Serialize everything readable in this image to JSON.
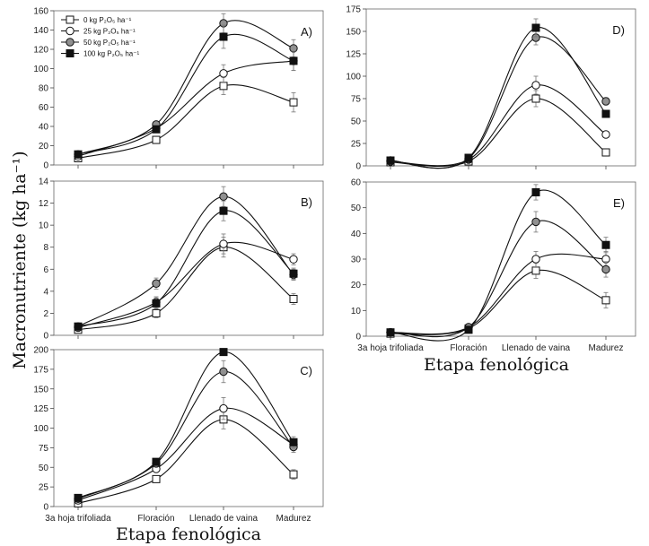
{
  "chart_data": {
    "type": "line",
    "ylabel": "Macronutriente (kg ha⁻¹)",
    "xlabel": "Etapa fenológica",
    "categories": [
      "3a hoja trifoliada",
      "Floración",
      "Llenado de vaina",
      "Madurez"
    ],
    "legend": {
      "placement": "top-left of panel A",
      "entries": [
        {
          "text": "0 kg P₂O₅ ha⁻¹",
          "marker": "open-square"
        },
        {
          "text": "25 kg P₂O₅ ha⁻¹",
          "marker": "open-circle"
        },
        {
          "text": "50 kg P₂O₅ ha⁻¹",
          "marker": "gray-circle"
        },
        {
          "text": "100 kg P₂O₅ ha⁻¹",
          "marker": "black-square"
        }
      ]
    },
    "colors": {
      "open_fill": "#ffffff",
      "gray_fill": "#909090",
      "black_fill": "#111111",
      "stroke": "#111111"
    },
    "panels": [
      {
        "label": "A)",
        "ylim": [
          0,
          160
        ],
        "yticks": [
          "0",
          "20",
          "40",
          "60",
          "80",
          "100",
          "120",
          "140",
          "160"
        ],
        "series": [
          {
            "name": "0 kg P2O5 ha-1",
            "values": [
              7,
              26,
              82,
              65
            ],
            "errors": [
              0,
              2,
              9,
              10
            ]
          },
          {
            "name": "25 kg P2O5 ha-1",
            "values": [
              9,
              38,
              95,
              108
            ],
            "errors": [
              0,
              3,
              9,
              10
            ]
          },
          {
            "name": "50 kg P2O5 ha-1",
            "values": [
              11,
              42,
              147,
              121
            ],
            "errors": [
              0,
              3,
              10,
              9
            ]
          },
          {
            "name": "100 kg P2O5 ha-1",
            "values": [
              11,
              37,
              133,
              108
            ],
            "errors": [
              0,
              3,
              12,
              10
            ]
          }
        ]
      },
      {
        "label": "B)",
        "ylim": [
          0,
          14
        ],
        "yticks": [
          "0",
          "2",
          "4",
          "6",
          "8",
          "10",
          "12",
          "14"
        ],
        "series": [
          {
            "name": "0 kg P2O5 ha-1",
            "values": [
              0.5,
              2.0,
              8.0,
              3.3
            ],
            "errors": [
              0,
              0.4,
              0.9,
              0.5
            ]
          },
          {
            "name": "25 kg P2O5 ha-1",
            "values": [
              0.7,
              3.0,
              8.3,
              6.9
            ],
            "errors": [
              0,
              0.5,
              0.9,
              0.5
            ]
          },
          {
            "name": "50 kg P2O5 ha-1",
            "values": [
              0.8,
              4.7,
              12.6,
              5.5
            ],
            "errors": [
              0,
              0.5,
              0.9,
              0.5
            ]
          },
          {
            "name": "100 kg P2O5 ha-1",
            "values": [
              0.8,
              2.9,
              11.3,
              5.6
            ],
            "errors": [
              0,
              0.5,
              0.9,
              0.5
            ]
          }
        ]
      },
      {
        "label": "C)",
        "ylim": [
          0,
          200
        ],
        "yticks": [
          "0",
          "25",
          "50",
          "75",
          "100",
          "125",
          "150",
          "175",
          "200"
        ],
        "series": [
          {
            "name": "0 kg P2O5 ha-1",
            "values": [
              4,
              35,
              111,
              41
            ],
            "errors": [
              0,
              4,
              12,
              6
            ]
          },
          {
            "name": "25 kg P2O5 ha-1",
            "values": [
              8,
              48,
              125,
              79
            ],
            "errors": [
              0,
              4,
              14,
              7
            ]
          },
          {
            "name": "50 kg P2O5 ha-1",
            "values": [
              10,
              55,
              172,
              76
            ],
            "errors": [
              0,
              4,
              14,
              7
            ]
          },
          {
            "name": "100 kg P2O5 ha-1",
            "values": [
              11,
              57,
              197,
              82
            ],
            "errors": [
              0,
              4,
              0,
              7
            ]
          }
        ]
      },
      {
        "label": "D)",
        "ylim": [
          0,
          175
        ],
        "yticks": [
          "0",
          "25",
          "50",
          "75",
          "100",
          "125",
          "150",
          "175"
        ],
        "series": [
          {
            "name": "0 kg P2O5 ha-1",
            "values": [
              4,
              5,
              75,
              15
            ],
            "errors": [
              0,
              0,
              9,
              3
            ]
          },
          {
            "name": "25 kg P2O5 ha-1",
            "values": [
              5,
              7,
              90,
              35
            ],
            "errors": [
              0,
              0,
              10,
              3
            ]
          },
          {
            "name": "50 kg P2O5 ha-1",
            "values": [
              6,
              8,
              143,
              72
            ],
            "errors": [
              0,
              0,
              8,
              4
            ]
          },
          {
            "name": "100 kg P2O5 ha-1",
            "values": [
              6,
              9,
              154,
              58
            ],
            "errors": [
              0,
              0,
              10,
              4
            ]
          }
        ]
      },
      {
        "label": "E)",
        "ylim": [
          0,
          60
        ],
        "yticks": [
          "0",
          "10",
          "20",
          "30",
          "40",
          "50",
          "60"
        ],
        "series": [
          {
            "name": "0 kg P2O5 ha-1",
            "values": [
              1.0,
              3.0,
              25.5,
              14
            ],
            "errors": [
              0,
              0,
              3,
              3
            ]
          },
          {
            "name": "25 kg P2O5 ha-1",
            "values": [
              1.5,
              3.5,
              30,
              30
            ],
            "errors": [
              0,
              0,
              3,
              3
            ]
          },
          {
            "name": "50 kg P2O5 ha-1",
            "values": [
              1.5,
              3.5,
              44.5,
              26
            ],
            "errors": [
              0,
              0,
              4,
              3
            ]
          },
          {
            "name": "100 kg P2O5 ha-1",
            "values": [
              1.5,
              2.5,
              56,
              35.5
            ],
            "errors": [
              0,
              0,
              3,
              3
            ]
          }
        ]
      }
    ]
  }
}
